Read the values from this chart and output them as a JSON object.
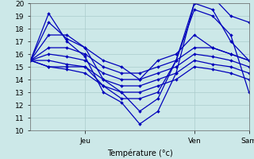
{
  "xlabel": "Température (°c)",
  "ylabel": "",
  "xlim": [
    0,
    48
  ],
  "ylim": [
    10,
    20
  ],
  "yticks": [
    10,
    11,
    12,
    13,
    14,
    15,
    16,
    17,
    18,
    19,
    20
  ],
  "xtick_positions": [
    12,
    36,
    48
  ],
  "xtick_labels": [
    "Jeu",
    "Ven",
    "Sam"
  ],
  "bg_color": "#cce8e8",
  "grid_color": "#aacccc",
  "line_color": "#0000bb",
  "markersize": 2.0,
  "linewidth": 0.9,
  "all_series": [
    [
      15.5,
      19.2,
      17.0,
      15.8,
      13.0,
      12.2,
      10.5,
      11.5,
      14.5,
      20.0,
      20.5,
      19.0,
      18.5
    ],
    [
      15.5,
      18.5,
      17.2,
      16.5,
      14.0,
      13.0,
      11.5,
      12.5,
      15.5,
      19.5,
      19.0,
      17.5,
      13.0
    ],
    [
      15.5,
      17.5,
      17.5,
      16.5,
      15.5,
      15.0,
      14.0,
      15.5,
      16.0,
      17.5,
      16.5,
      16.0,
      15.5
    ],
    [
      15.5,
      16.5,
      16.5,
      16.0,
      15.0,
      14.5,
      14.5,
      15.0,
      15.5,
      16.5,
      16.5,
      16.0,
      15.5
    ],
    [
      15.5,
      16.0,
      15.8,
      15.5,
      14.5,
      14.0,
      14.0,
      14.5,
      15.0,
      16.0,
      15.8,
      15.5,
      15.0
    ],
    [
      15.5,
      15.5,
      15.2,
      15.0,
      14.0,
      13.5,
      13.5,
      14.0,
      14.5,
      15.5,
      15.2,
      15.0,
      14.5
    ],
    [
      15.5,
      15.0,
      14.8,
      14.5,
      13.5,
      13.0,
      13.0,
      13.5,
      14.0,
      15.0,
      14.8,
      14.5,
      14.0
    ],
    [
      15.5,
      15.0,
      15.0,
      15.0,
      13.5,
      12.5,
      12.5,
      13.0,
      15.5,
      20.0,
      19.5,
      17.0,
      15.5
    ]
  ],
  "x_vals": [
    0,
    4,
    8,
    12,
    16,
    20,
    24,
    28,
    32,
    36,
    40,
    44,
    48
  ]
}
